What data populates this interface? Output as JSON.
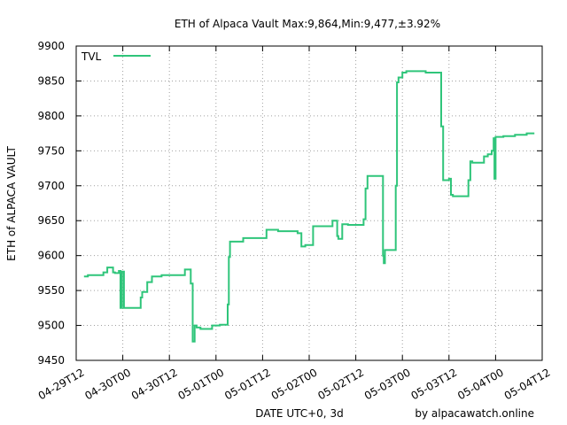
{
  "chart_data": {
    "type": "line",
    "title": "ETH of Alpaca Vault Max:9,864,Min:9,477,±3.92%",
    "xlabel": "DATE UTC+0, 3d",
    "ylabel": "ETH of ALPACA VAULT",
    "credit": "by alpacawatch.online",
    "ylim": [
      9450,
      9900
    ],
    "yticks": [
      9450,
      9500,
      9550,
      9600,
      9650,
      9700,
      9750,
      9800,
      9850,
      9900
    ],
    "xticks": [
      "04-29T12",
      "04-30T00",
      "04-30T12",
      "05-01T00",
      "05-01T12",
      "05-02T00",
      "05-02T12",
      "05-03T00",
      "05-03T12",
      "05-04T00",
      "05-04T12"
    ],
    "xlim_hours": [
      0,
      120
    ],
    "grid": true,
    "legend_position": "top-left",
    "series": [
      {
        "name": "TVL",
        "color": "#2fc57a",
        "points": [
          [
            2,
            9570
          ],
          [
            3,
            9570
          ],
          [
            3,
            9572
          ],
          [
            7,
            9572
          ],
          [
            7,
            9576
          ],
          [
            8,
            9576
          ],
          [
            8,
            9583
          ],
          [
            9.5,
            9583
          ],
          [
            9.5,
            9576
          ],
          [
            10,
            9576
          ],
          [
            10,
            9575
          ],
          [
            11,
            9575
          ],
          [
            11,
            9578
          ],
          [
            11.4,
            9578
          ],
          [
            11.4,
            9525
          ],
          [
            11.8,
            9525
          ],
          [
            11.8,
            9577
          ],
          [
            12.3,
            9577
          ],
          [
            12.3,
            9525
          ],
          [
            16.6,
            9525
          ],
          [
            16.6,
            9540
          ],
          [
            17,
            9540
          ],
          [
            17,
            9548
          ],
          [
            18.3,
            9548
          ],
          [
            18.3,
            9562
          ],
          [
            19.5,
            9562
          ],
          [
            19.5,
            9570
          ],
          [
            22,
            9570
          ],
          [
            22,
            9572
          ],
          [
            28,
            9572
          ],
          [
            28,
            9580
          ],
          [
            29.5,
            9580
          ],
          [
            29.5,
            9560
          ],
          [
            30,
            9560
          ],
          [
            30,
            9477
          ],
          [
            30.5,
            9477
          ],
          [
            30.5,
            9500
          ],
          [
            31,
            9500
          ],
          [
            31,
            9497
          ],
          [
            32,
            9497
          ],
          [
            32,
            9495
          ],
          [
            35,
            9495
          ],
          [
            35,
            9500
          ],
          [
            37,
            9500
          ],
          [
            37,
            9501
          ],
          [
            39,
            9501
          ],
          [
            39,
            9530
          ],
          [
            39.3,
            9530
          ],
          [
            39.3,
            9598
          ],
          [
            39.6,
            9598
          ],
          [
            39.6,
            9620
          ],
          [
            43,
            9620
          ],
          [
            43,
            9625
          ],
          [
            49,
            9625
          ],
          [
            49,
            9637
          ],
          [
            52,
            9637
          ],
          [
            52,
            9635
          ],
          [
            57,
            9635
          ],
          [
            57,
            9632
          ],
          [
            58,
            9632
          ],
          [
            58,
            9613
          ],
          [
            59,
            9613
          ],
          [
            59,
            9615
          ],
          [
            61,
            9615
          ],
          [
            61,
            9642
          ],
          [
            66,
            9642
          ],
          [
            66,
            9650
          ],
          [
            67.2,
            9650
          ],
          [
            67.2,
            9628
          ],
          [
            67.5,
            9628
          ],
          [
            67.5,
            9624
          ],
          [
            68.5,
            9624
          ],
          [
            68.5,
            9645
          ],
          [
            70,
            9645
          ],
          [
            70,
            9644
          ],
          [
            74,
            9644
          ],
          [
            74,
            9652
          ],
          [
            74.5,
            9652
          ],
          [
            74.5,
            9696
          ],
          [
            75,
            9696
          ],
          [
            75,
            9714
          ],
          [
            79,
            9714
          ],
          [
            79,
            9600
          ],
          [
            79.2,
            9600
          ],
          [
            79.2,
            9589
          ],
          [
            79.5,
            9589
          ],
          [
            79.5,
            9608
          ],
          [
            82,
            9608
          ],
          [
            82,
            9608
          ],
          [
            82.3,
            9608
          ],
          [
            82.3,
            9700
          ],
          [
            82.6,
            9700
          ],
          [
            82.6,
            9848
          ],
          [
            83,
            9848
          ],
          [
            83,
            9855
          ],
          [
            84,
            9855
          ],
          [
            84,
            9862
          ],
          [
            85,
            9862
          ],
          [
            85,
            9864
          ],
          [
            90,
            9864
          ],
          [
            90,
            9862
          ],
          [
            94,
            9862
          ],
          [
            94,
            9785
          ],
          [
            94.5,
            9785
          ],
          [
            94.5,
            9708
          ],
          [
            95,
            9708
          ],
          [
            95,
            9708
          ],
          [
            96,
            9708
          ],
          [
            96,
            9710
          ],
          [
            96.5,
            9710
          ],
          [
            96.5,
            9687
          ],
          [
            97,
            9687
          ],
          [
            97,
            9685
          ],
          [
            101,
            9685
          ],
          [
            101,
            9708
          ],
          [
            101.5,
            9708
          ],
          [
            101.5,
            9735
          ],
          [
            102,
            9735
          ],
          [
            102,
            9733
          ],
          [
            105,
            9733
          ],
          [
            105,
            9742
          ],
          [
            106,
            9742
          ],
          [
            106,
            9745
          ],
          [
            107,
            9745
          ],
          [
            107,
            9750
          ],
          [
            107.5,
            9750
          ],
          [
            107.5,
            9768
          ],
          [
            107.7,
            9768
          ],
          [
            107.7,
            9710
          ],
          [
            108,
            9710
          ],
          [
            108,
            9770
          ],
          [
            110,
            9770
          ],
          [
            110,
            9771
          ],
          [
            113,
            9771
          ],
          [
            113,
            9773
          ],
          [
            116,
            9773
          ],
          [
            116,
            9775
          ],
          [
            118,
            9775
          ]
        ]
      }
    ]
  }
}
